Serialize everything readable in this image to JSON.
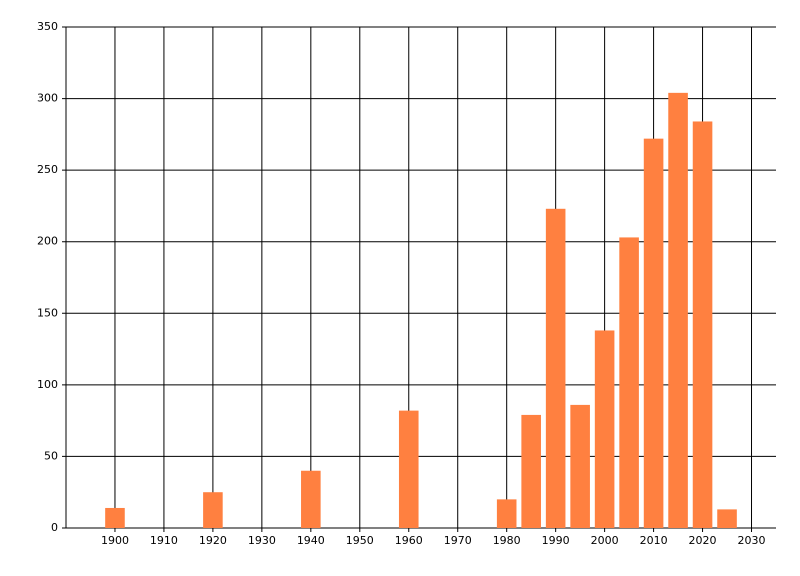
{
  "chart_data": {
    "type": "bar",
    "x": [
      1900,
      1920,
      1940,
      1960,
      1980,
      1985,
      1990,
      1995,
      2000,
      2005,
      2010,
      2015,
      2020,
      2025
    ],
    "values": [
      14,
      25,
      40,
      82,
      20,
      79,
      223,
      86,
      138,
      203,
      272,
      304,
      284,
      13
    ],
    "color": "#ff8040",
    "xlim": [
      1890,
      2035
    ],
    "xticks": [
      1900,
      1910,
      1920,
      1930,
      1940,
      1950,
      1960,
      1970,
      1980,
      1990,
      2000,
      2010,
      2020,
      2030
    ],
    "ylim": [
      0,
      350
    ],
    "yticks": [
      0,
      50,
      100,
      150,
      200,
      250,
      300,
      350
    ],
    "grid": true
  }
}
